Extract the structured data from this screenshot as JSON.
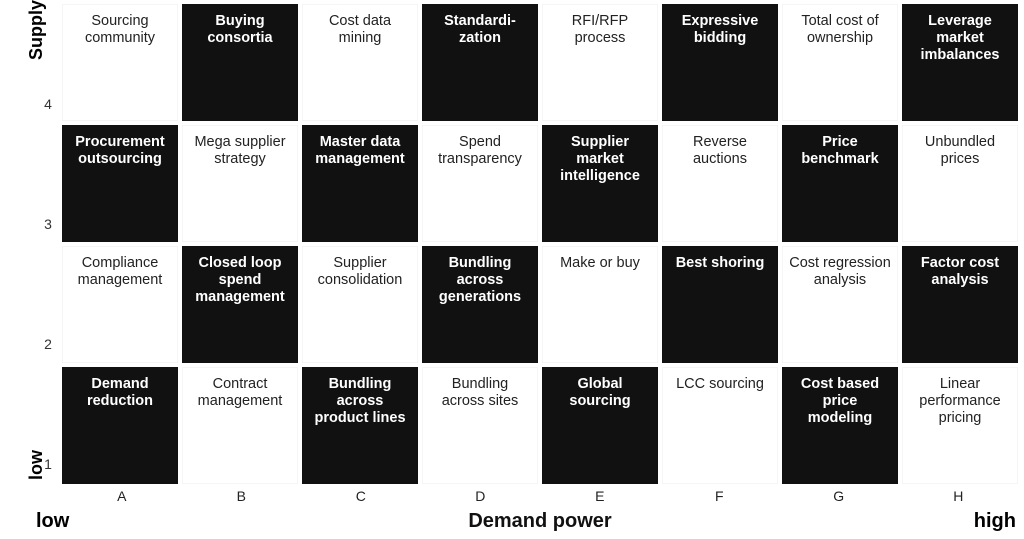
{
  "matrix": {
    "type": "heatmap",
    "y_axis_top": "Supply",
    "y_axis_bottom": "low",
    "x_axis_title": "Demand power",
    "x_low": "low",
    "x_high": "high",
    "row_labels": [
      "4",
      "3",
      "2",
      "1"
    ],
    "col_labels": [
      "A",
      "B",
      "C",
      "D",
      "E",
      "F",
      "G",
      "H"
    ],
    "dark_color": "#111111",
    "light_color": "#ffffff",
    "dark_text": "#ffffff",
    "light_text": "#222222",
    "font_family": "Arial",
    "cell_fontsize": 14.5,
    "axis_title_fontsize": 20,
    "rows": [
      [
        {
          "label": "Sourcing community",
          "dark": false
        },
        {
          "label": "Buying consortia",
          "dark": true
        },
        {
          "label": "Cost data mining",
          "dark": false
        },
        {
          "label": "Standardi-\nzation",
          "dark": true
        },
        {
          "label": "RFI/RFP process",
          "dark": false
        },
        {
          "label": "Expressive bidding",
          "dark": true
        },
        {
          "label": "Total cost of ownership",
          "dark": false
        },
        {
          "label": "Leverage market imbalances",
          "dark": true
        }
      ],
      [
        {
          "label": "Procurement outsourcing",
          "dark": true
        },
        {
          "label": "Mega supplier strategy",
          "dark": false
        },
        {
          "label": "Master data management",
          "dark": true
        },
        {
          "label": "Spend transparency",
          "dark": false
        },
        {
          "label": "Supplier market intelligence",
          "dark": true
        },
        {
          "label": "Reverse auctions",
          "dark": false
        },
        {
          "label": "Price benchmark",
          "dark": true
        },
        {
          "label": "Unbundled prices",
          "dark": false
        }
      ],
      [
        {
          "label": "Compliance management",
          "dark": false
        },
        {
          "label": "Closed loop spend management",
          "dark": true
        },
        {
          "label": "Supplier consolidation",
          "dark": false
        },
        {
          "label": "Bundling across generations",
          "dark": true
        },
        {
          "label": "Make or buy",
          "dark": false
        },
        {
          "label": "Best shoring",
          "dark": true
        },
        {
          "label": "Cost regression analysis",
          "dark": false
        },
        {
          "label": "Factor cost analysis",
          "dark": true
        }
      ],
      [
        {
          "label": "Demand reduction",
          "dark": true
        },
        {
          "label": "Contract management",
          "dark": false
        },
        {
          "label": "Bundling across product lines",
          "dark": true
        },
        {
          "label": "Bundling across sites",
          "dark": false
        },
        {
          "label": "Global sourcing",
          "dark": true
        },
        {
          "label": "LCC sourcing",
          "dark": false
        },
        {
          "label": "Cost based price modeling",
          "dark": true
        },
        {
          "label": "Linear performance pricing",
          "dark": false
        }
      ]
    ]
  }
}
